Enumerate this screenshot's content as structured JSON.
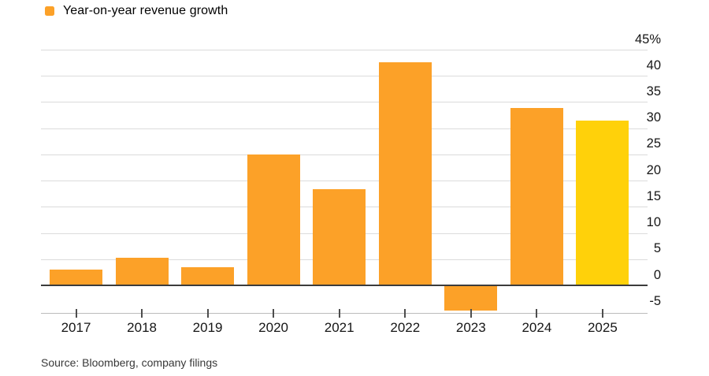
{
  "legend": {
    "label": "Year-on-year revenue growth"
  },
  "source": {
    "label": "Source: Bloomberg, company filings"
  },
  "chart_data": {
    "type": "bar",
    "title": "Year-on-year revenue growth",
    "categories": [
      "2017",
      "2018",
      "2019",
      "2020",
      "2021",
      "2022",
      "2023",
      "2024",
      "2025"
    ],
    "values": [
      3,
      5.3,
      3.5,
      25,
      18.4,
      42.6,
      -4.6,
      33.9,
      31.4
    ],
    "unit": "%",
    "ylabel": "",
    "xlabel": "",
    "ylim": [
      -7,
      47
    ],
    "yticks": [
      45,
      40,
      35,
      30,
      25,
      20,
      15,
      10,
      5,
      0,
      -5
    ],
    "ytick_labels": [
      "45%",
      "40",
      "35",
      "30",
      "25",
      "20",
      "15",
      "10",
      "5",
      "0",
      "-5"
    ],
    "axis_side": "right",
    "grid": true,
    "legend_position": "top-left",
    "highlight_category": "2025",
    "source": "Source: Bloomberg, company filings"
  },
  "colors": {
    "bar": "#FCA128",
    "bar_highlight": "#FFD10A",
    "gridline": "#DBDBDB",
    "zero_line": "#3C3C3C",
    "axis_line": "#BCBCBC",
    "tick": "#4D4D4D",
    "label_text": "#161616",
    "source_text": "#383838",
    "background": "#FFFFFF"
  }
}
